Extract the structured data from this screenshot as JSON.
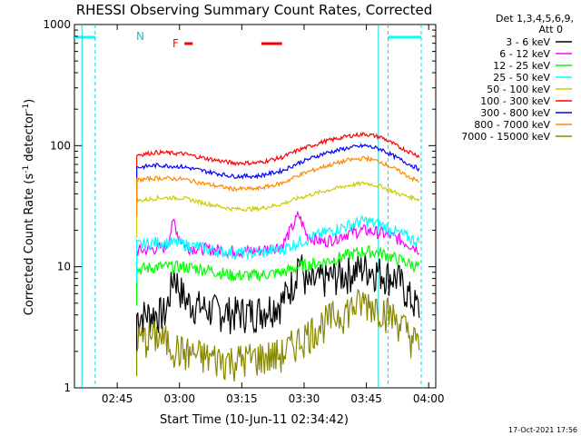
{
  "chart_data": {
    "type": "line",
    "title": "RHESSI Observing Summary Count Rates, Corrected",
    "xlabel": "Start Time (10-Jun-11 02:34:42)",
    "ylabel": "Corrected Count Rate (s",
    "ylabel_sup1": "-1",
    "ylabel_mid": " detector",
    "ylabel_sup2": "-1",
    "ylabel_end": ")",
    "yscale": "log",
    "ylim": [
      1,
      1000
    ],
    "xlim_minutes": [
      0,
      87
    ],
    "x_ticks": [
      {
        "label": "02:45",
        "min": 10.3
      },
      {
        "label": "03:00",
        "min": 25.3
      },
      {
        "label": "03:15",
        "min": 40.3
      },
      {
        "label": "03:30",
        "min": 55.3
      },
      {
        "label": "03:45",
        "min": 70.3
      },
      {
        "label": "04:00",
        "min": 85.3
      }
    ],
    "y_ticks": [
      {
        "label": "1",
        "value": 1
      },
      {
        "label": "10",
        "value": 10
      },
      {
        "label": "100",
        "value": 100
      },
      {
        "label": "1000",
        "value": 1000
      }
    ],
    "legend_header": [
      "Det 1,3,4,5,6,9,",
      "Att 0"
    ],
    "legend_position": "top-right, outside plot",
    "series": [
      {
        "name": "3 - 6 keV",
        "color": "#000000",
        "points": [
          [
            15,
            4
          ],
          [
            22,
            4.2
          ],
          [
            24,
            9
          ],
          [
            25,
            7
          ],
          [
            27,
            5.2
          ],
          [
            32,
            4.5
          ],
          [
            38,
            4.2
          ],
          [
            44,
            4.3
          ],
          [
            50,
            5.2
          ],
          [
            53,
            8
          ],
          [
            54,
            12
          ],
          [
            56,
            7
          ],
          [
            60,
            8
          ],
          [
            66,
            9
          ],
          [
            70,
            10
          ],
          [
            74,
            9
          ],
          [
            78,
            8
          ],
          [
            81,
            5.5
          ],
          [
            83,
            4.5
          ]
        ]
      },
      {
        "name": "6 - 12 keV",
        "color": "#ff00ff",
        "points": [
          [
            15,
            13.5
          ],
          [
            22,
            14.5
          ],
          [
            24,
            24
          ],
          [
            25,
            18
          ],
          [
            27,
            14.5
          ],
          [
            32,
            14
          ],
          [
            38,
            13.5
          ],
          [
            44,
            13.5
          ],
          [
            50,
            15
          ],
          [
            53,
            23
          ],
          [
            54,
            27
          ],
          [
            56,
            18
          ],
          [
            60,
            16
          ],
          [
            66,
            19
          ],
          [
            70,
            20
          ],
          [
            74,
            19
          ],
          [
            78,
            17
          ],
          [
            83,
            14
          ]
        ]
      },
      {
        "name": "12 - 25 keV",
        "color": "#00ff00",
        "points": [
          [
            15,
            9.5
          ],
          [
            20,
            10
          ],
          [
            26,
            10
          ],
          [
            32,
            9.5
          ],
          [
            38,
            8.5
          ],
          [
            44,
            8.5
          ],
          [
            50,
            9
          ],
          [
            54,
            10
          ],
          [
            60,
            11
          ],
          [
            66,
            12.5
          ],
          [
            70,
            13.5
          ],
          [
            74,
            13
          ],
          [
            78,
            11.5
          ],
          [
            83,
            10
          ]
        ]
      },
      {
        "name": "25 - 50 keV",
        "color": "#00ffff",
        "points": [
          [
            15,
            15
          ],
          [
            20,
            16
          ],
          [
            26,
            15.5
          ],
          [
            32,
            14
          ],
          [
            38,
            13
          ],
          [
            44,
            13
          ],
          [
            50,
            14
          ],
          [
            54,
            16
          ],
          [
            60,
            19
          ],
          [
            66,
            22
          ],
          [
            70,
            24
          ],
          [
            74,
            22
          ],
          [
            78,
            19
          ],
          [
            83,
            16
          ]
        ]
      },
      {
        "name": "50 - 100 keV",
        "color": "#cccc00",
        "points": [
          [
            15,
            35
          ],
          [
            20,
            37
          ],
          [
            26,
            37
          ],
          [
            32,
            33
          ],
          [
            38,
            30
          ],
          [
            44,
            30
          ],
          [
            50,
            33
          ],
          [
            54,
            37
          ],
          [
            60,
            42
          ],
          [
            66,
            47
          ],
          [
            70,
            49
          ],
          [
            74,
            46
          ],
          [
            78,
            40
          ],
          [
            83,
            36
          ]
        ]
      },
      {
        "name": "100 - 300 keV",
        "color": "#ff0000",
        "points": [
          [
            15,
            84
          ],
          [
            20,
            88
          ],
          [
            26,
            86
          ],
          [
            32,
            78
          ],
          [
            38,
            72
          ],
          [
            44,
            72
          ],
          [
            50,
            80
          ],
          [
            54,
            92
          ],
          [
            60,
            108
          ],
          [
            66,
            120
          ],
          [
            70,
            125
          ],
          [
            74,
            117
          ],
          [
            78,
            98
          ],
          [
            83,
            82
          ]
        ]
      },
      {
        "name": "300 - 800 keV",
        "color": "#0000ff",
        "points": [
          [
            15,
            66
          ],
          [
            20,
            69
          ],
          [
            26,
            67
          ],
          [
            32,
            61
          ],
          [
            38,
            56
          ],
          [
            44,
            56
          ],
          [
            50,
            62
          ],
          [
            54,
            72
          ],
          [
            60,
            86
          ],
          [
            66,
            96
          ],
          [
            70,
            100
          ],
          [
            74,
            93
          ],
          [
            78,
            78
          ],
          [
            83,
            64
          ]
        ]
      },
      {
        "name": "800 - 7000 keV",
        "color": "#ff8800",
        "points": [
          [
            15,
            52
          ],
          [
            20,
            54
          ],
          [
            26,
            53
          ],
          [
            32,
            48
          ],
          [
            38,
            44
          ],
          [
            44,
            44
          ],
          [
            50,
            49
          ],
          [
            54,
            57
          ],
          [
            60,
            67
          ],
          [
            66,
            76
          ],
          [
            70,
            79
          ],
          [
            74,
            73
          ],
          [
            78,
            62
          ],
          [
            83,
            50
          ]
        ]
      },
      {
        "name": "7000 - 15000 keV",
        "color": "#888800",
        "points": [
          [
            15,
            2.5
          ],
          [
            20,
            2.7
          ],
          [
            26,
            2
          ],
          [
            32,
            1.8
          ],
          [
            38,
            1.7
          ],
          [
            44,
            1.8
          ],
          [
            50,
            1.9
          ],
          [
            54,
            2.5
          ],
          [
            60,
            3.5
          ],
          [
            66,
            4.5
          ],
          [
            70,
            5.2
          ],
          [
            74,
            4.6
          ],
          [
            78,
            3.6
          ],
          [
            83,
            2.2
          ]
        ]
      }
    ],
    "annotations": {
      "flag_label": "F",
      "night_label": "N",
      "footer_date": "17-Oct-2021 17:56"
    }
  }
}
